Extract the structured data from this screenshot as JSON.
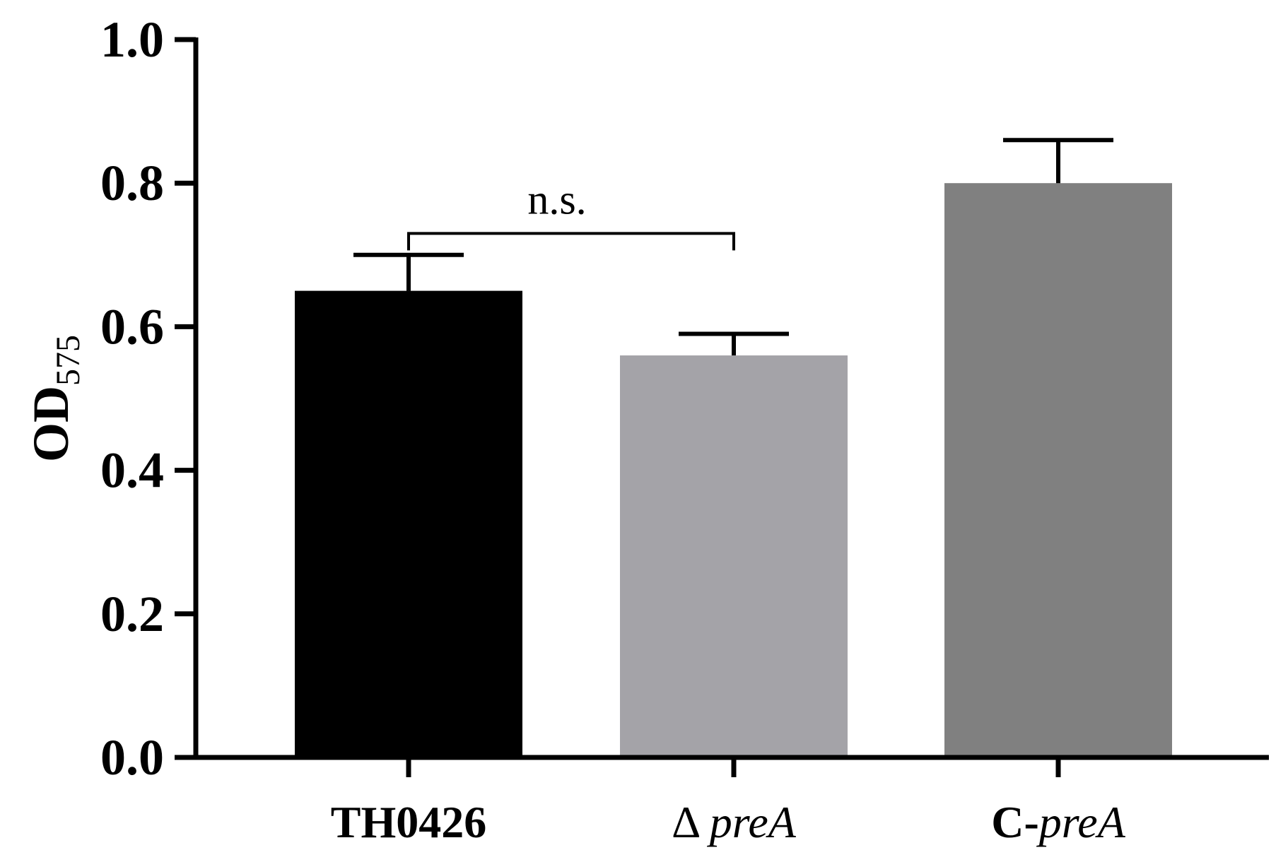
{
  "chart_data": {
    "type": "bar",
    "ylabel_main": "OD",
    "ylabel_sub": "575",
    "ylim": [
      0,
      1.0
    ],
    "yticks": [
      "0.0",
      "0.2",
      "0.4",
      "0.6",
      "0.8",
      "1.0"
    ],
    "bars": [
      {
        "label_prefix": "",
        "label_italic": "",
        "label_plain": "TH0426",
        "value": 0.65,
        "error": 0.05,
        "color": "#000000"
      },
      {
        "label_prefix": "Δ ",
        "label_italic": "preA",
        "label_plain": "",
        "value": 0.56,
        "error": 0.03,
        "color": "#a4a3a8"
      },
      {
        "label_prefix": "C-",
        "label_italic": "preA",
        "label_plain": "",
        "value": 0.8,
        "error": 0.06,
        "color": "#808080"
      }
    ],
    "annotation": {
      "text": "n.s.",
      "from_bar": 0,
      "to_bar": 1,
      "level": 0.73
    }
  }
}
